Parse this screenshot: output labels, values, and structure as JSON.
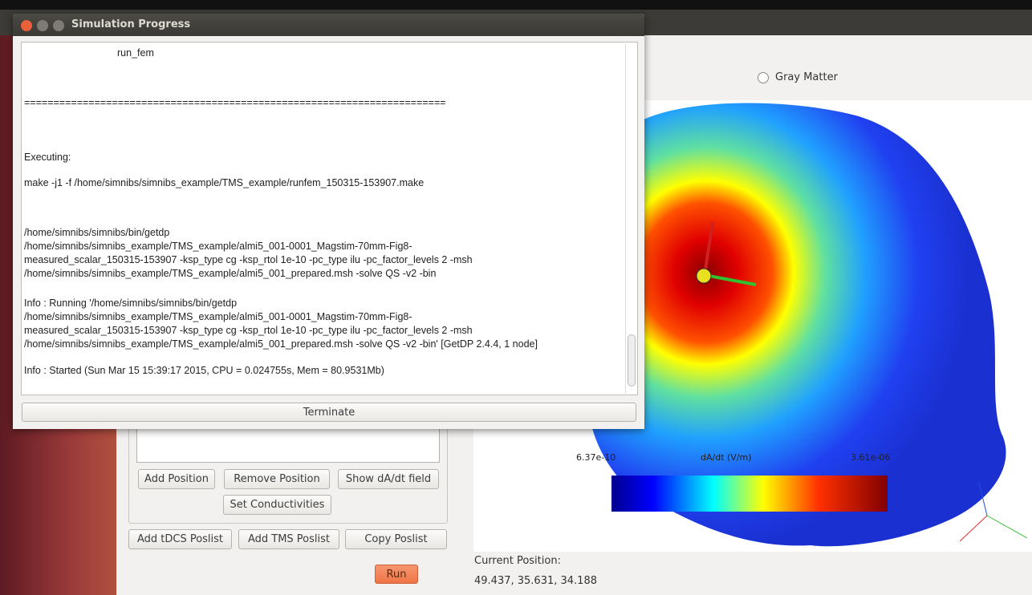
{
  "dialog": {
    "title": "Simulation Progress",
    "log": [
      "run_fem",
      "========================================================================",
      "Executing:",
      "make -j1 -f /home/simnibs/simnibs_example/TMS_example/runfem_150315-153907.make",
      "/home/simnibs/simnibs/bin/getdp",
      "/home/simnibs/simnibs_example/TMS_example/almi5_001-0001_Magstim-70mm-Fig8-",
      "measured_scalar_150315-153907 -ksp_type cg -ksp_rtol 1e-10 -pc_type ilu -pc_factor_levels 2  -msh",
      "/home/simnibs/simnibs_example/TMS_example/almi5_001_prepared.msh -solve QS -v2 -bin",
      "Info    : Running '/home/simnibs/simnibs/bin/getdp",
      "/home/simnibs/simnibs_example/TMS_example/almi5_001-0001_Magstim-70mm-Fig8-",
      "measured_scalar_150315-153907 -ksp_type cg -ksp_rtol 1e-10 -pc_type ilu -pc_factor_levels 2 -msh",
      "/home/simnibs/simnibs_example/TMS_example/almi5_001_prepared.msh -solve QS -v2 -bin' [GetDP 2.4.4, 1 node]",
      "Info    : Started (Sun Mar 15 15:39:17 2015, CPU = 0.024755s, Mem = 80.9531Mb)"
    ],
    "terminate": "Terminate"
  },
  "main": {
    "radio": "Gray Matter",
    "colorbar": {
      "min": "6.37e-10",
      "label": "dA/dt (V/m)",
      "max": "3.61e-06"
    },
    "buttons": [
      "Add Position",
      "Remove Position",
      "Show dA/dt field",
      "Set Conductivities",
      "Add tDCS Poslist",
      "Add TMS Poslist",
      "Copy Poslist",
      "Run"
    ],
    "position_label": "Current Position:",
    "position_value": "49.437, 35.631, 34.188"
  }
}
